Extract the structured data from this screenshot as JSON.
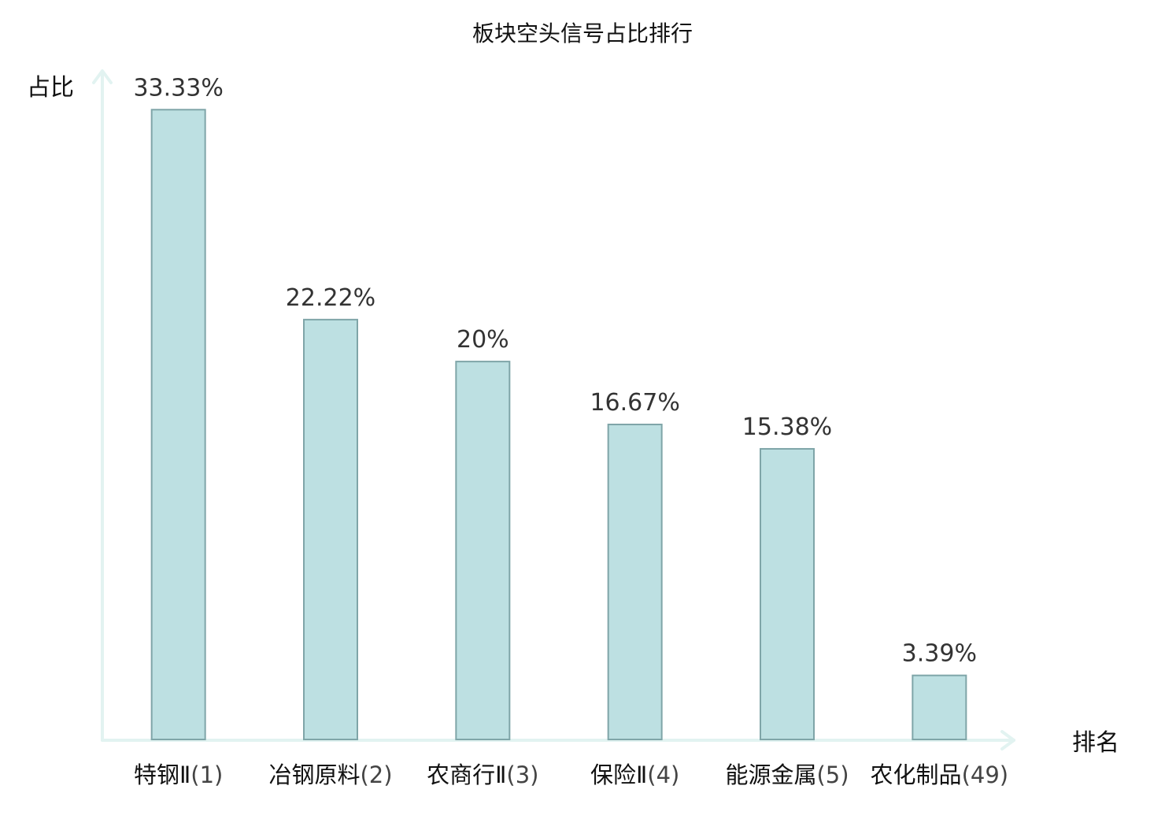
{
  "chart_data": {
    "type": "bar",
    "title": "板块空头信号占比排行",
    "ylabel": "占比",
    "xlabel": "排名",
    "ylim": [
      0,
      34.8
    ],
    "categories": [
      {
        "name": "特钢Ⅱ",
        "rank": "(1)"
      },
      {
        "name": "冶钢原料",
        "rank": "(2)"
      },
      {
        "name": "农商行Ⅱ",
        "rank": "(3)"
      },
      {
        "name": "保险Ⅱ",
        "rank": "(4)"
      },
      {
        "name": "能源金属",
        "rank": "(5)"
      },
      {
        "name": "农化制品",
        "rank": "(49)"
      }
    ],
    "values": [
      33.33,
      22.22,
      20,
      16.67,
      15.38,
      3.39
    ],
    "value_labels": [
      "33.33%",
      "22.22%",
      "20%",
      "16.67%",
      "15.38%",
      "3.39%"
    ],
    "highlight_index": 5,
    "colors": {
      "bar_fill": "#bde0e2",
      "bar_stroke": "#7fa5a8",
      "axis": "#e2f3f1",
      "highlight": "#e0201c",
      "text": "#111111"
    }
  }
}
